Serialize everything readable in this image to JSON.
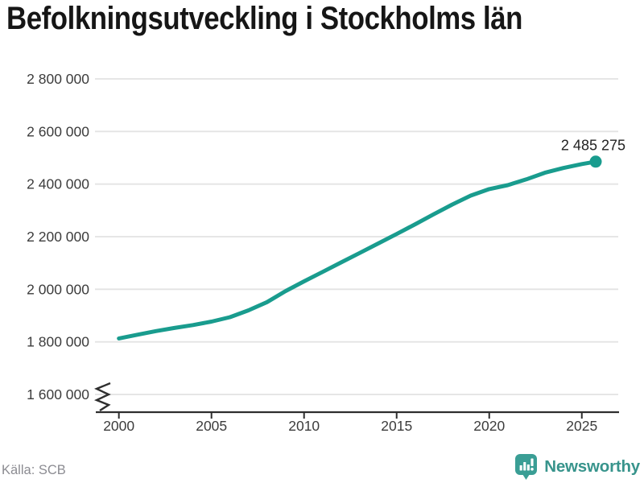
{
  "title": "Befolkningsutveckling i Stockholms län",
  "footer": {
    "source": "Källa: SCB",
    "brand": "Newsworthy"
  },
  "colors": {
    "line": "#199c8e",
    "dot": "#199c8e",
    "grid": "#e3e3e3",
    "axis": "#2e2e2e",
    "tick_label": "#3c3c3c",
    "annotation": "#222222",
    "title": "#161616",
    "source": "#8c8c92",
    "brand": "#38948c",
    "logo_mark": "#3a9e95",
    "background": "#ffffff"
  },
  "chart_data": {
    "type": "line",
    "title": "Befolkningsutveckling i Stockholms län",
    "xlabel": "",
    "ylabel": "",
    "legend": "none",
    "grid": "horizontal-only",
    "y_axis_break": true,
    "xlim": [
      1998.71,
      2027.01
    ],
    "ylim": [
      1600000,
      2800000
    ],
    "y_ticks": [
      {
        "value": 2800000,
        "label": "2 800 000"
      },
      {
        "value": 2600000,
        "label": "2 600 000"
      },
      {
        "value": 2400000,
        "label": "2 400 000"
      },
      {
        "value": 2200000,
        "label": "2 200 000"
      },
      {
        "value": 2000000,
        "label": "2 000 000"
      },
      {
        "value": 1800000,
        "label": "1 800 000"
      },
      {
        "value": 1600000,
        "label": "1 600 000"
      }
    ],
    "x_ticks": [
      {
        "value": 2000,
        "label": "2000"
      },
      {
        "value": 2005,
        "label": "2005"
      },
      {
        "value": 2010,
        "label": "2010"
      },
      {
        "value": 2015,
        "label": "2015"
      },
      {
        "value": 2020,
        "label": "2020"
      },
      {
        "value": 2025,
        "label": "2025"
      }
    ],
    "series": [
      {
        "x": [
          2000,
          2001,
          2002,
          2003,
          2004,
          2005,
          2006,
          2007,
          2008,
          2009,
          2010,
          2011,
          2012,
          2013,
          2014,
          2015,
          2016,
          2017,
          2018,
          2019,
          2020,
          2021,
          2022,
          2023,
          2024,
          2025,
          2025.75
        ],
        "y": [
          1813000,
          1827000,
          1841000,
          1853000,
          1864000,
          1877000,
          1894000,
          1920000,
          1951000,
          1993000,
          2030000,
          2066000,
          2102000,
          2138000,
          2174000,
          2210000,
          2247000,
          2285000,
          2322000,
          2356000,
          2381000,
          2396000,
          2418000,
          2443000,
          2461000,
          2476000,
          2485275
        ]
      }
    ],
    "annotation": {
      "label": "2 485 275",
      "x": 2025.75,
      "y": 2485275
    }
  }
}
